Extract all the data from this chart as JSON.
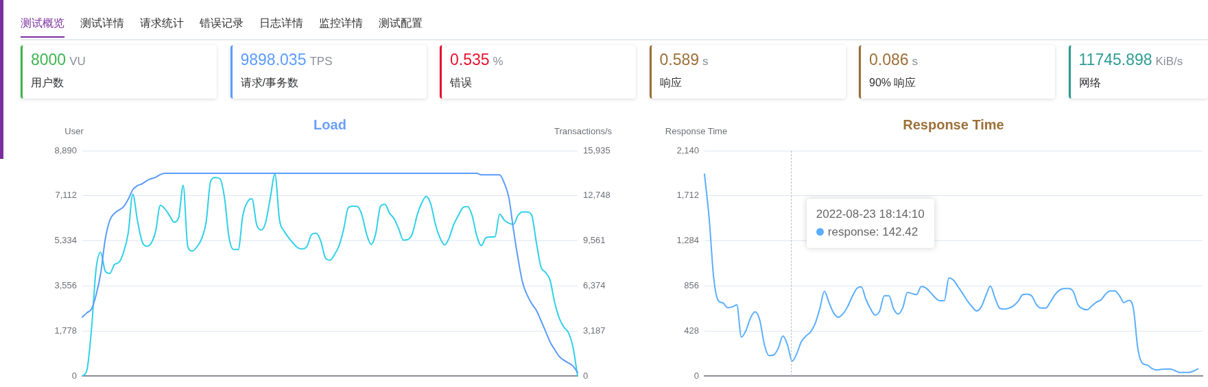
{
  "chart_data": [
    {
      "type": "other",
      "annotations": [
        "测试概览",
        "测试详情",
        "请求统计",
        "错误记录",
        "日志详情",
        "监控详情",
        "测试配置"
      ]
    },
    {
      "type": "other",
      "colors": [
        "#3fb34f",
        "#5b9bff",
        "#e8102e",
        "#9c6f35",
        "#9c6f35",
        "#2e9c94"
      ],
      "annotations": [
        "8000",
        "VU",
        "用户数",
        "9898.035",
        "TPS",
        "请求/事务数",
        "0.535",
        "%",
        "错误",
        "0.589",
        "s",
        "响应",
        "0.086",
        "s",
        "90% 响应",
        "11745.898",
        "KiB/s",
        "网络"
      ]
    },
    {
      "type": "line",
      "title": "Load",
      "ylabel": "User",
      "y2label": "Transactions/s",
      "grid": "y",
      "categories": [
        null,
        null,
        null,
        null,
        null,
        null,
        null,
        null,
        null,
        null,
        null,
        null,
        null,
        null,
        null,
        null,
        null,
        null,
        null,
        null,
        null,
        null,
        null,
        null,
        null,
        null,
        null,
        null,
        null,
        null,
        null,
        null,
        null,
        null,
        null,
        null,
        null,
        null,
        null,
        null,
        null,
        null,
        null,
        null,
        null,
        null,
        null,
        null,
        null,
        null,
        null,
        null,
        null,
        null,
        null,
        null,
        null,
        null,
        null,
        null,
        null,
        null,
        null,
        null,
        null,
        null,
        null,
        null,
        null,
        null,
        null,
        null,
        null,
        null,
        null,
        null,
        null,
        null,
        null,
        null,
        null,
        null,
        null,
        null,
        null,
        null,
        null,
        null,
        null,
        null,
        null,
        null,
        null,
        null,
        null,
        null,
        null,
        null,
        null,
        null,
        null,
        null,
        null,
        null,
        null,
        null,
        null,
        null,
        null
      ],
      "ylim": [
        0,
        8890
      ],
      "yticks": [
        0,
        {
          "value": 1778,
          "label": "1,778"
        },
        {
          "value": 3556,
          "label": "3,556"
        },
        {
          "value": 5334,
          "label": "5,334"
        },
        {
          "value": 7112,
          "label": "7,112"
        },
        {
          "value": 8890,
          "label": "8,890"
        }
      ],
      "y2lim": [
        0,
        15935
      ],
      "y2ticks": [
        0,
        {
          "value": 3187,
          "label": "3,187"
        },
        {
          "value": 6374,
          "label": "6,374"
        },
        {
          "value": 9561,
          "label": "9,561"
        },
        {
          "value": 12748,
          "label": "12,748"
        },
        {
          "value": 15935,
          "label": "15,935"
        }
      ],
      "series": [
        {
          "color": "#5b9bf8",
          "values": [
            2330,
            2500,
            2650,
            3200,
            4050,
            5400,
            6150,
            6420,
            6550,
            6680,
            6970,
            7350,
            7510,
            7580,
            7700,
            7790,
            7840,
            7950,
            8000,
            8000,
            8000,
            8000,
            8000,
            8000,
            8000,
            8000,
            8000,
            8000,
            8000,
            8000,
            8000,
            8000,
            8000,
            8000,
            8000,
            8000,
            8000,
            8000,
            8000,
            8000,
            8000,
            8000,
            8000,
            8000,
            8000,
            8000,
            8000,
            8000,
            8000,
            8000,
            8000,
            8000,
            8000,
            8000,
            8000,
            8000,
            8000,
            8000,
            8000,
            8000,
            8000,
            8000,
            8000,
            8000,
            8000,
            8000,
            8000,
            8000,
            8000,
            8000,
            8000,
            8000,
            8000,
            8000,
            8000,
            8000,
            8000,
            8000,
            8000,
            8000,
            8000,
            8000,
            8000,
            8000,
            8000,
            8000,
            8000,
            7940,
            7940,
            7940,
            7940,
            7940,
            7620,
            7050,
            5800,
            4650,
            3700,
            3200,
            2860,
            2600,
            2200,
            1780,
            1350,
            1050,
            780,
            630,
            520,
            400,
            150
          ]
        },
        {
          "color": "#2fd0e8",
          "axis": "y2",
          "values": [
            0,
            430,
            3310,
            7570,
            8760,
            7420,
            7260,
            7890,
            8050,
            8760,
            10100,
            12860,
            11040,
            9550,
            9180,
            9390,
            10260,
            12070,
            11830,
            11360,
            10890,
            11200,
            13490,
            9150,
            8840,
            9150,
            9700,
            10890,
            13810,
            14040,
            13960,
            12620,
            9780,
            8950,
            8950,
            11360,
            12310,
            12540,
            10730,
            10330,
            10890,
            12620,
            14280,
            11040,
            10260,
            9780,
            9390,
            9070,
            8990,
            9180,
            10020,
            10100,
            9550,
            8360,
            8200,
            8600,
            9230,
            10410,
            11910,
            12020,
            11990,
            11360,
            10020,
            9310,
            10100,
            11990,
            12150,
            11520,
            11120,
            10410,
            9620,
            9660,
            10100,
            11360,
            12230,
            12700,
            12150,
            10730,
            9780,
            9280,
            9780,
            10730,
            11360,
            11910,
            11990,
            11360,
            9940,
            9230,
            9780,
            9830,
            9860,
            11440,
            11040,
            10810,
            10730,
            11360,
            11600,
            11600,
            11360,
            9470,
            7730,
            7340,
            6780,
            5210,
            4100,
            3470,
            3080,
            2050,
            0
          ]
        }
      ]
    },
    {
      "type": "line",
      "title": "Response Time",
      "ylabel": "Response Time",
      "grid": "y",
      "categories": [
        null,
        null,
        null,
        null,
        null,
        null,
        null,
        null,
        null,
        null,
        null,
        null,
        null,
        null,
        null,
        null,
        null,
        null,
        null,
        null,
        null,
        null,
        null,
        null,
        null,
        null,
        null,
        null,
        null,
        null,
        null,
        null,
        null,
        null,
        null,
        null,
        null,
        null,
        null,
        null,
        null,
        null,
        null,
        null,
        null,
        null,
        null,
        null,
        null,
        null,
        null,
        null,
        null,
        null,
        null,
        null,
        null,
        null,
        null,
        null,
        null,
        null,
        null,
        null,
        null,
        null,
        null,
        null,
        null,
        null,
        null,
        null,
        null,
        null,
        null,
        null,
        null,
        null,
        null,
        null,
        null,
        null,
        null,
        null,
        null,
        null,
        null,
        null,
        null,
        null,
        null,
        null,
        null,
        null,
        null,
        null,
        null,
        null,
        null,
        null,
        null,
        null,
        null,
        null,
        null,
        null,
        null,
        null,
        null
      ],
      "ylim": [
        0,
        2140
      ],
      "yticks": [
        0,
        428,
        856,
        {
          "value": 1284,
          "label": "1,284"
        },
        {
          "value": 1712,
          "label": "1,712"
        },
        {
          "value": 2140,
          "label": "2,140"
        }
      ],
      "annotations": [
        "2022-08-23 18:14:10",
        "response: 142.42"
      ],
      "series": [
        {
          "color": "#5aaeff",
          "values": [
            1917,
            1504,
            932,
            716,
            695,
            650,
            657,
            678,
            371,
            434,
            555,
            610,
            530,
            297,
            195,
            201,
            265,
            381,
            297,
            142,
            212,
            328,
            381,
            420,
            500,
            640,
            805,
            699,
            600,
            560,
            590,
            657,
            752,
            831,
            848,
            731,
            640,
            580,
            620,
            763,
            763,
            640,
            590,
            650,
            795,
            784,
            773,
            852,
            837,
            795,
            746,
            716,
            716,
            932,
            911,
            848,
            784,
            716,
            661,
            619,
            657,
            763,
            854,
            742,
            646,
            636,
            646,
            667,
            710,
            773,
            778,
            759,
            678,
            646,
            646,
            703,
            773,
            816,
            831,
            831,
            801,
            678,
            640,
            631,
            667,
            703,
            725,
            780,
            809,
            809,
            763,
            699,
            720,
            646,
            254,
            121,
            106,
            74,
            59,
            64,
            68,
            68,
            53,
            36,
            36,
            36,
            47,
            70,
            null
          ]
        }
      ]
    }
  ]
}
